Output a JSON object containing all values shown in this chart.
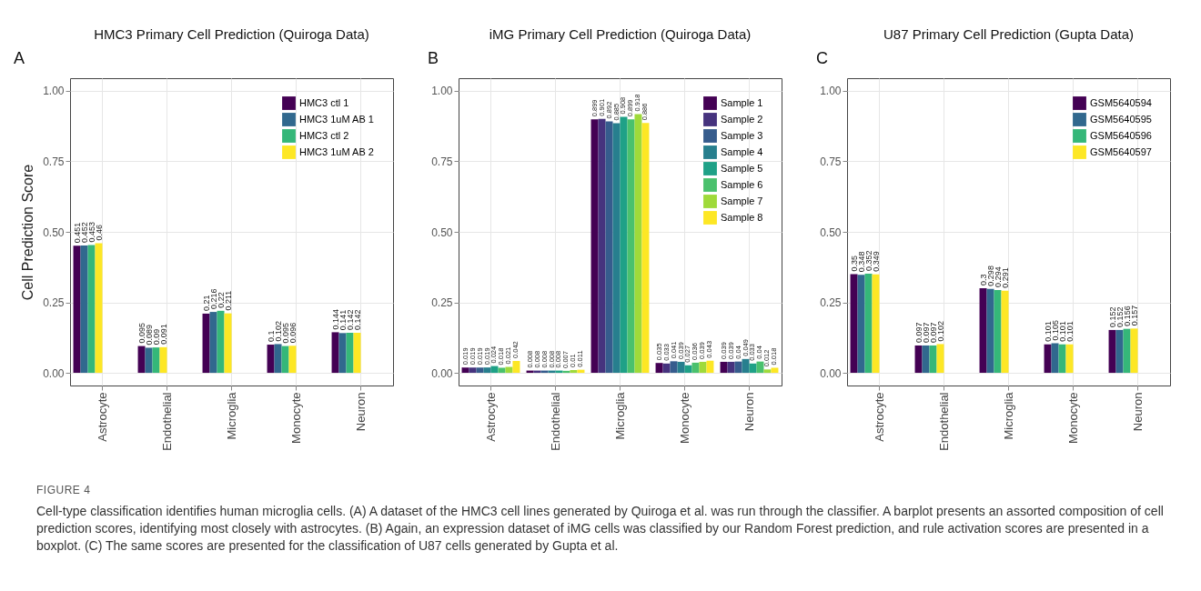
{
  "chart_data": [
    {
      "type": "bar",
      "title": "HMC3 Primary Cell Prediction (Quiroga Data)",
      "ylabel": "Cell Prediction Score",
      "annotations": [
        "A"
      ],
      "categories": [
        "Astrocyte",
        "Endothelial",
        "Microglia",
        "Monocyte",
        "Neuron"
      ],
      "series": [
        {
          "name": "HMC3 ctl 1",
          "color": "#440154",
          "values": [
            0.451,
            0.095,
            0.21,
            0.1,
            0.144
          ]
        },
        {
          "name": "HMC3 1uM AB 1",
          "color": "#31688e",
          "values": [
            0.452,
            0.089,
            0.216,
            0.102,
            0.141
          ]
        },
        {
          "name": "HMC3 ctl 2",
          "color": "#35b779",
          "values": [
            0.453,
            0.09,
            0.22,
            0.095,
            0.142
          ]
        },
        {
          "name": "HMC3 1uM AB 2",
          "color": "#fde725",
          "values": [
            0.46,
            0.091,
            0.211,
            0.096,
            0.142
          ]
        }
      ],
      "ylim": [
        -0.045,
        1.045
      ],
      "yticks": [
        {
          "value": 0,
          "label": "0.00"
        },
        {
          "value": 0.25,
          "label": "0.25"
        },
        {
          "value": 0.5,
          "label": "0.50"
        },
        {
          "value": 0.75,
          "label": "0.75"
        },
        {
          "value": 1,
          "label": "1.00"
        }
      ],
      "grid": true,
      "legend": "top right",
      "data_labels": true
    },
    {
      "type": "bar",
      "title": "iMG Primary Cell Prediction (Quiroga Data)",
      "annotations": [
        "B"
      ],
      "categories": [
        "Astrocyte",
        "Endothelial",
        "Microglia",
        "Monocyte",
        "Neuron"
      ],
      "series": [
        {
          "name": "Sample 1",
          "color": "#440154",
          "values": [
            0.019,
            0.008,
            0.899,
            0.035,
            0.039
          ]
        },
        {
          "name": "Sample 2",
          "color": "#46337e",
          "values": [
            0.019,
            0.008,
            0.901,
            0.033,
            0.039
          ]
        },
        {
          "name": "Sample 3",
          "color": "#365c8d",
          "values": [
            0.019,
            0.008,
            0.892,
            0.041,
            0.04
          ]
        },
        {
          "name": "Sample 4",
          "color": "#277f8e",
          "values": [
            0.019,
            0.008,
            0.885,
            0.039,
            0.049
          ]
        },
        {
          "name": "Sample 5",
          "color": "#1fa187",
          "values": [
            0.024,
            0.008,
            0.908,
            0.027,
            0.033
          ]
        },
        {
          "name": "Sample 6",
          "color": "#4ac16d",
          "values": [
            0.018,
            0.007,
            0.899,
            0.036,
            0.04
          ]
        },
        {
          "name": "Sample 7",
          "color": "#9fda3a",
          "values": [
            0.021,
            0.01,
            0.918,
            0.039,
            0.012
          ]
        },
        {
          "name": "Sample 8",
          "color": "#fde725",
          "values": [
            0.042,
            0.011,
            0.886,
            0.043,
            0.018
          ]
        }
      ],
      "ylim": [
        -0.045,
        1.045
      ],
      "yticks": [
        {
          "value": 0,
          "label": "0.00"
        },
        {
          "value": 0.25,
          "label": "0.25"
        },
        {
          "value": 0.5,
          "label": "0.50"
        },
        {
          "value": 0.75,
          "label": "0.75"
        },
        {
          "value": 1,
          "label": "1.00"
        }
      ],
      "grid": true,
      "legend": "top right",
      "data_labels": true
    },
    {
      "type": "bar",
      "title": "U87 Primary Cell Prediction (Gupta Data)",
      "annotations": [
        "C",
        "FIGURE 4",
        "Cell-type classification identifies human microglia cells. (A) A dataset of the HMC3 cell lines generated by Quiroga et al. was run through the classifier. A barplot presents an assorted composition of cell prediction scores, identifying most closely with astrocytes. (B) Again, an expression dataset of iMG cells was classified by our Random Forest prediction, and rule activation scores are presented in a boxplot. (C) The same scores are presented for the classification of U87 cells generated by Gupta et al."
      ],
      "categories": [
        "Astrocyte",
        "Endothelial",
        "Microglia",
        "Monocyte",
        "Neuron"
      ],
      "series": [
        {
          "name": "GSM5640594",
          "color": "#440154",
          "values": [
            0.35,
            0.097,
            0.3,
            0.101,
            0.152
          ]
        },
        {
          "name": "GSM5640595",
          "color": "#31688e",
          "values": [
            0.348,
            0.097,
            0.298,
            0.105,
            0.152
          ]
        },
        {
          "name": "GSM5640596",
          "color": "#35b779",
          "values": [
            0.352,
            0.097,
            0.294,
            0.101,
            0.156
          ]
        },
        {
          "name": "GSM5640597",
          "color": "#fde725",
          "values": [
            0.349,
            0.102,
            0.291,
            0.101,
            0.157
          ]
        }
      ],
      "ylim": [
        -0.045,
        1.045
      ],
      "yticks": [
        {
          "value": 0,
          "label": "0.00"
        },
        {
          "value": 0.25,
          "label": "0.25"
        },
        {
          "value": 0.5,
          "label": "0.50"
        },
        {
          "value": 0.75,
          "label": "0.75"
        },
        {
          "value": 1,
          "label": "1.00"
        }
      ],
      "grid": true,
      "legend": "top right",
      "data_labels": true
    }
  ]
}
